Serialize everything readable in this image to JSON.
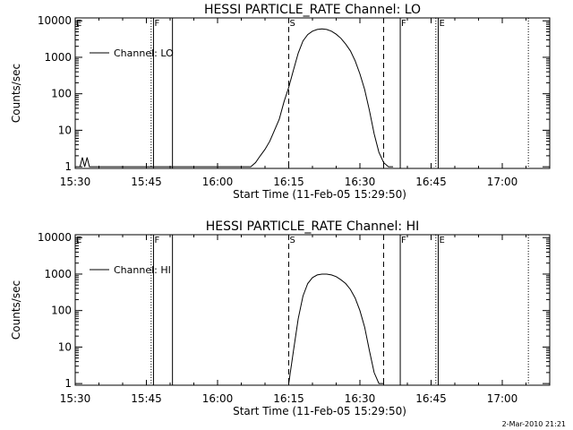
{
  "chart_data": [
    {
      "type": "line",
      "title": "HESSI PARTICLE_RATE Channel: LO",
      "xlabel": "Start Time (11-Feb-05 15:29:50)",
      "ylabel": "Counts/sec",
      "yscale": "log",
      "xlim": [
        "15:30",
        "17:10"
      ],
      "ylim": [
        0.9,
        12000
      ],
      "xticks": [
        "15:30",
        "15:45",
        "16:00",
        "16:15",
        "16:30",
        "16:45",
        "17:00"
      ],
      "yticks": [
        "1",
        "10",
        "100",
        "1000",
        "10000"
      ],
      "legend": {
        "position": "top-left",
        "entries": [
          "Channel: LO"
        ]
      },
      "series": [
        {
          "name": "Channel: LO",
          "x": [
            "15:31",
            "15:31.5",
            "15:32",
            "15:32.5",
            "15:33",
            "16:07",
            "16:08",
            "16:09",
            "16:10",
            "16:11",
            "16:12",
            "16:13",
            "16:14",
            "16:15",
            "16:16",
            "16:17",
            "16:18",
            "16:19",
            "16:20",
            "16:21",
            "16:22",
            "16:23",
            "16:24",
            "16:25",
            "16:26",
            "16:27",
            "16:28",
            "16:29",
            "16:30",
            "16:31",
            "16:32",
            "16:33",
            "16:34",
            "16:35",
            "16:36",
            "16:37"
          ],
          "y": [
            1,
            1.8,
            1,
            1.8,
            1,
            1,
            1.3,
            2,
            3,
            5,
            10,
            20,
            60,
            150,
            450,
            1300,
            2800,
            4200,
            5200,
            5800,
            6000,
            5800,
            5200,
            4300,
            3300,
            2300,
            1500,
            800,
            350,
            130,
            35,
            8,
            2.5,
            1.3,
            1,
            1
          ]
        }
      ],
      "markers": [
        {
          "label": "E",
          "x": "15:30",
          "style": "solid"
        },
        {
          "label": "",
          "x": "15:46",
          "style": "dotted"
        },
        {
          "label": "F",
          "x": "15:46.5",
          "style": "solid"
        },
        {
          "label": "",
          "x": "15:50.5",
          "style": "solid"
        },
        {
          "label": "S",
          "x": "16:15",
          "style": "dashed"
        },
        {
          "label": "",
          "x": "16:35",
          "style": "dashed"
        },
        {
          "label": "F",
          "x": "16:38.5",
          "style": "solid"
        },
        {
          "label": "",
          "x": "16:46",
          "style": "dotted"
        },
        {
          "label": "E",
          "x": "16:46.5",
          "style": "solid"
        },
        {
          "label": "",
          "x": "17:05.5",
          "style": "dotted"
        }
      ]
    },
    {
      "type": "line",
      "title": "HESSI PARTICLE_RATE Channel: HI",
      "xlabel": "Start Time (11-Feb-05 15:29:50)",
      "ylabel": "Counts/sec",
      "yscale": "log",
      "xlim": [
        "15:30",
        "17:10"
      ],
      "ylim": [
        0.9,
        12000
      ],
      "xticks": [
        "15:30",
        "15:45",
        "16:00",
        "16:15",
        "16:30",
        "16:45",
        "17:00"
      ],
      "yticks": [
        "1",
        "10",
        "100",
        "1000",
        "10000"
      ],
      "legend": {
        "position": "top-left",
        "entries": [
          "Channel: HI"
        ]
      },
      "series": [
        {
          "name": "Channel: HI",
          "x": [
            "16:15",
            "16:16",
            "16:17",
            "16:18",
            "16:19",
            "16:20",
            "16:21",
            "16:22",
            "16:23",
            "16:24",
            "16:25",
            "16:26",
            "16:27",
            "16:28",
            "16:29",
            "16:30",
            "16:31",
            "16:32",
            "16:33",
            "16:34",
            "16:35"
          ],
          "y": [
            1,
            8,
            60,
            250,
            550,
            800,
            950,
            1000,
            1000,
            950,
            850,
            700,
            550,
            380,
            220,
            100,
            35,
            8,
            2,
            1,
            1
          ]
        }
      ],
      "markers": [
        {
          "label": "E",
          "x": "15:30",
          "style": "solid"
        },
        {
          "label": "",
          "x": "15:46",
          "style": "dotted"
        },
        {
          "label": "F",
          "x": "15:46.5",
          "style": "solid"
        },
        {
          "label": "",
          "x": "15:50.5",
          "style": "solid"
        },
        {
          "label": "S",
          "x": "16:15",
          "style": "dashed"
        },
        {
          "label": "",
          "x": "16:35",
          "style": "dashed"
        },
        {
          "label": "F",
          "x": "16:38.5",
          "style": "solid"
        },
        {
          "label": "",
          "x": "16:46",
          "style": "dotted"
        },
        {
          "label": "E",
          "x": "16:46.5",
          "style": "solid"
        },
        {
          "label": "",
          "x": "17:05.5",
          "style": "dotted"
        }
      ]
    }
  ],
  "timestamp": "2-Mar-2010 21:21"
}
